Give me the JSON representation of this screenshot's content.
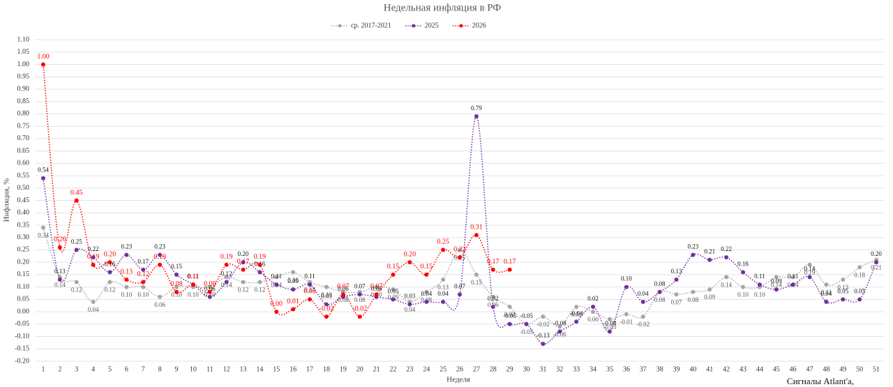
{
  "chart_data": {
    "type": "line",
    "title": "Недельная инфляция в РФ",
    "xlabel": "Неделя",
    "ylabel": "Инфляция, %",
    "annotation": "Сигналы Atlant'a,",
    "categories": [
      "1",
      "2",
      "3",
      "4",
      "5",
      "6",
      "7",
      "8",
      "9",
      "10",
      "11",
      "12",
      "13",
      "14",
      "15",
      "16",
      "17",
      "18",
      "19",
      "20",
      "21",
      "22",
      "23",
      "24",
      "25",
      "26",
      "27",
      "28",
      "29",
      "30",
      "31",
      "32",
      "33",
      "34",
      "35",
      "36",
      "37",
      "38",
      "39",
      "40",
      "41",
      "42",
      "43",
      "44",
      "45",
      "46",
      "47",
      "48",
      "49",
      "50",
      "51"
    ],
    "ylim": [
      -0.2,
      1.1
    ],
    "yticks": [
      {
        "value": -0.2,
        "label": "-0.20"
      },
      {
        "value": -0.15,
        "label": "-0.15"
      },
      {
        "value": -0.1,
        "label": "-0.10"
      },
      {
        "value": -0.05,
        "label": "-0.05"
      },
      {
        "value": 0,
        "label": "0.00"
      },
      {
        "value": 0.05,
        "label": "0.05"
      },
      {
        "value": 0.1,
        "label": "0.10"
      },
      {
        "value": 0.15,
        "label": "0.15"
      },
      {
        "value": 0.2,
        "label": "0.20"
      },
      {
        "value": 0.25,
        "label": "0.25"
      },
      {
        "value": 0.3,
        "label": "0.30"
      },
      {
        "value": 0.35,
        "label": "0.35"
      },
      {
        "value": 0.4,
        "label": "0.40"
      },
      {
        "value": 0.45,
        "label": "0.45"
      },
      {
        "value": 0.5,
        "label": "0.50"
      },
      {
        "value": 0.55,
        "label": "0.55"
      },
      {
        "value": 0.6,
        "label": "0.60"
      },
      {
        "value": 0.65,
        "label": "0.65"
      },
      {
        "value": 0.7,
        "label": "0.70"
      },
      {
        "value": 0.75,
        "label": "0.75"
      },
      {
        "value": 0.8,
        "label": "0.80"
      },
      {
        "value": 0.85,
        "label": "0.85"
      },
      {
        "value": 0.9,
        "label": "0.90"
      },
      {
        "value": 0.95,
        "label": "0.95"
      },
      {
        "value": 1.0,
        "label": "1.00"
      },
      {
        "value": 1.05,
        "label": "1.05"
      },
      {
        "value": 1.1,
        "label": "1.10"
      }
    ],
    "grid": true,
    "legend": "top",
    "series": [
      {
        "name": "ср. 2017-2021",
        "color": "#a6a6a6",
        "values": [
          0.34,
          0.14,
          0.12,
          0.04,
          0.12,
          0.1,
          0.1,
          0.06,
          0.1,
          0.1,
          0.1,
          0.14,
          0.12,
          0.12,
          0.14,
          0.16,
          0.12,
          0.1,
          0.08,
          0.08,
          0.1,
          0.09,
          0.04,
          0.08,
          0.13,
          0.25,
          0.15,
          0.06,
          0.02,
          -0.05,
          -0.02,
          -0.06,
          0.02,
          0.0,
          -0.03,
          -0.01,
          -0.02,
          0.08,
          0.07,
          0.08,
          0.09,
          0.14,
          0.1,
          0.1,
          0.14,
          0.14,
          0.19,
          0.11,
          0.13,
          0.18,
          0.21
        ],
        "value_labels": [
          "0.34",
          "0.14",
          "0.12",
          "0.04",
          "0.12",
          "0.10",
          "0.10",
          "0.06",
          "0.10",
          "0.10",
          "0.10",
          "0.14",
          "0.12",
          "0.12",
          "0.14",
          "0.16",
          "0.12",
          "0.10",
          "0.08",
          "0.08",
          "0.10",
          "0.09",
          "0.04",
          "0.08",
          "0.13",
          "0.25",
          "0.15",
          "0.06",
          "0.02",
          "-0.05",
          "-0.02",
          "-0.06",
          "0.02",
          "0.00",
          "-0.03",
          "-0.01",
          "-0.02",
          "0.08",
          "0.07",
          "0.08",
          "0.09",
          "0.14",
          "0.10",
          "0.10",
          "0.14",
          "0.14",
          "0.19",
          "0.11",
          "0.13",
          "0.18",
          "0.21"
        ]
      },
      {
        "name": "2025",
        "color": "#7030a0",
        "values": [
          0.54,
          0.13,
          0.25,
          0.22,
          0.16,
          0.23,
          0.17,
          0.23,
          0.15,
          0.11,
          0.06,
          0.12,
          0.2,
          0.16,
          0.11,
          0.09,
          0.11,
          0.03,
          0.06,
          0.07,
          0.06,
          0.05,
          0.03,
          0.04,
          0.04,
          0.07,
          0.79,
          0.02,
          -0.05,
          -0.05,
          -0.13,
          -0.08,
          -0.04,
          0.02,
          -0.08,
          0.1,
          0.04,
          0.08,
          0.13,
          0.23,
          0.21,
          0.22,
          0.16,
          0.11,
          0.09,
          0.11,
          0.14,
          0.04,
          0.05,
          0.05,
          0.2
        ],
        "value_labels": [
          "0.54",
          "0.13",
          "0.25",
          "0.22",
          "0.16",
          "0.23",
          "0.17",
          "0.23",
          "0.15",
          "0.11",
          "0.06",
          "0.12",
          "0.20",
          "0.16",
          "0.11",
          "0.09",
          "0.11",
          "0.03",
          "0.06",
          "0.07",
          "0.06",
          "0.05",
          "0.03",
          "0.04",
          "0.04",
          "0.07",
          "0.79",
          "0.02",
          "-0.05",
          "-0.05",
          "-0.13",
          "-0.08",
          "-0.04",
          "0.02",
          "-0.08",
          "0.10",
          "0.04",
          "0.08",
          "0.13",
          "0.23",
          "0.21",
          "0.22",
          "0.16",
          "0.11",
          "0.09",
          "0.11",
          "0.14",
          "0.04",
          "0.05",
          "0.05",
          "0.20"
        ]
      },
      {
        "name": "2026",
        "color": "#ff0000",
        "values": [
          1.0,
          0.26,
          0.45,
          0.19,
          0.2,
          0.13,
          0.12,
          0.19,
          0.08,
          0.11,
          0.08,
          0.19,
          0.17,
          0.19,
          0.0,
          0.01,
          0.05,
          -0.02,
          0.07,
          -0.02,
          0.07,
          0.15,
          0.2,
          0.15,
          0.25,
          0.22,
          0.31,
          0.17,
          0.17,
          null,
          null,
          null,
          null,
          null,
          null,
          null,
          null,
          null,
          null,
          null,
          null,
          null,
          null,
          null,
          null,
          null,
          null,
          null,
          null,
          null,
          null
        ],
        "value_labels": [
          "1.00",
          "0.26",
          "0.45",
          "0.19",
          "0.20",
          "0.13",
          "0.12",
          "0.19",
          "0.08",
          "0.11",
          "0.08",
          "0.19",
          "0.17",
          "0.19",
          "0.00",
          "0.01",
          "0.05",
          "-0.02",
          "0.07",
          "-0.02",
          "0.07",
          "0.15",
          "0.20",
          "0.15",
          "0.25",
          "0.22",
          "0.31",
          "0.17",
          "0.17",
          null,
          null,
          null,
          null,
          null,
          null,
          null,
          null,
          null,
          null,
          null,
          null,
          null,
          null,
          null,
          null,
          null,
          null,
          null,
          null,
          null,
          null
        ]
      }
    ]
  }
}
